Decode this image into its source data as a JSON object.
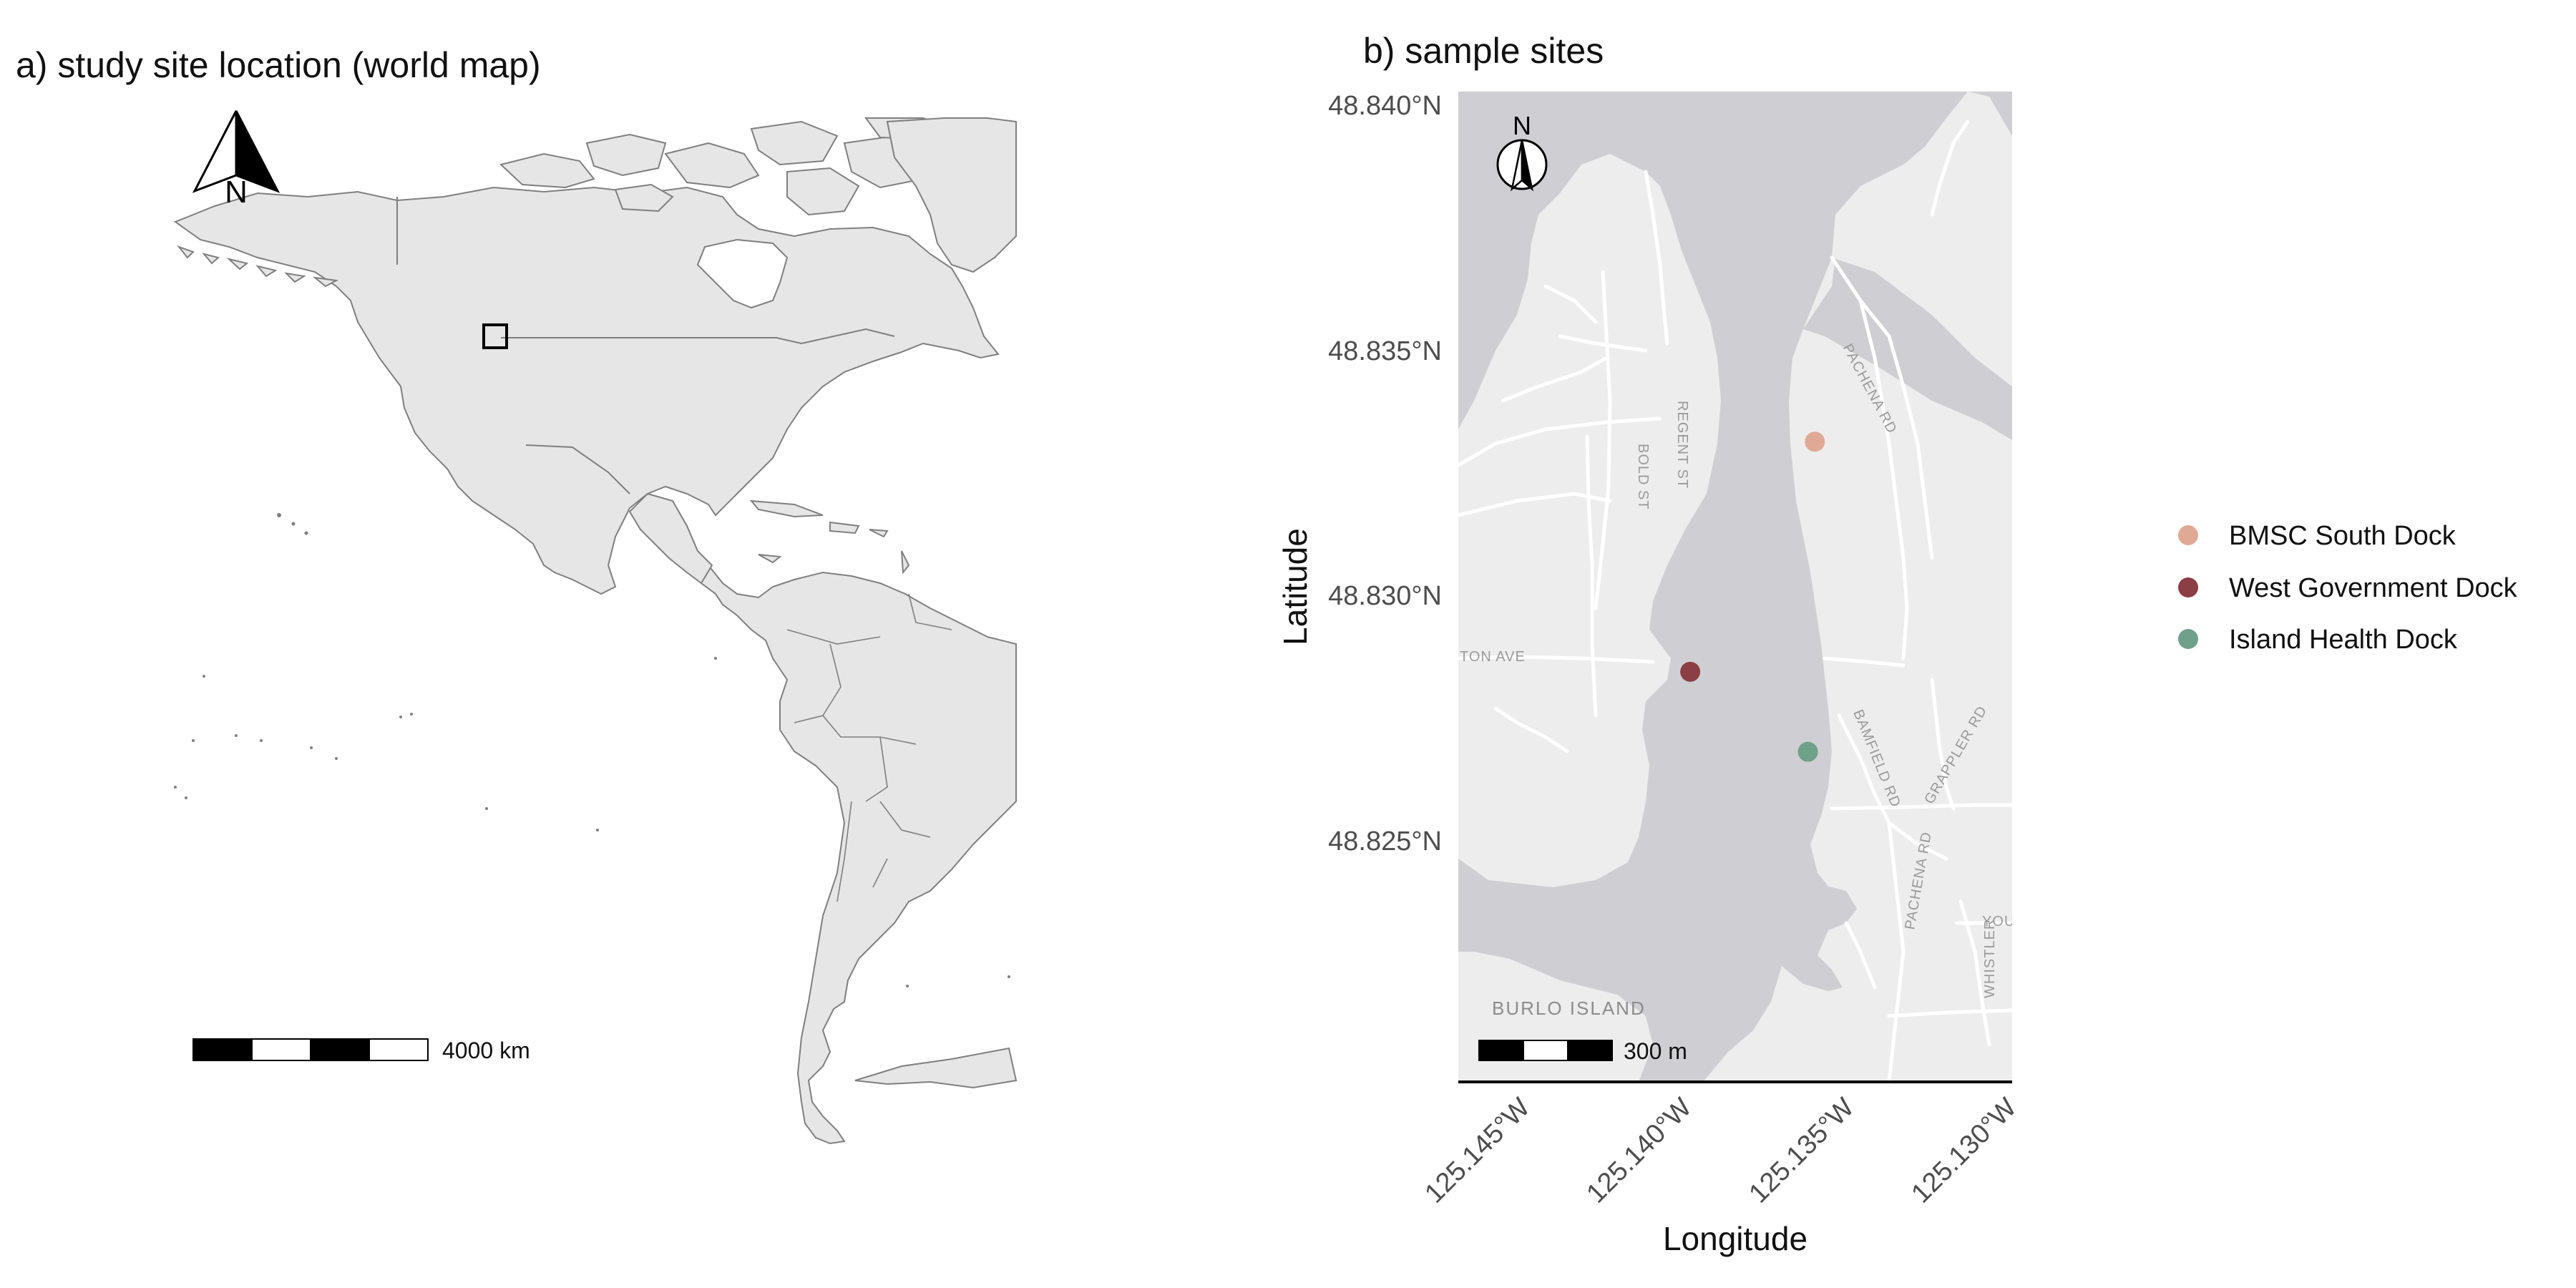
{
  "panel_a": {
    "title": "a) study site location (world map)",
    "north_label": "N",
    "scale_label": "4000 km"
  },
  "panel_b": {
    "title": "b) sample sites",
    "north_label": "N",
    "scale_label": "300 m",
    "x_axis_title": "Longitude",
    "y_axis_title": "Latitude",
    "lat_ticks": [
      "48.840°N",
      "48.835°N",
      "48.830°N",
      "48.825°N"
    ],
    "lon_ticks": [
      "125.145°W",
      "125.140°W",
      "125.135°W",
      "125.130°W"
    ],
    "road_labels": [
      "REGENT ST",
      "BOLD ST",
      "TON AVE",
      "PACHENA RD",
      "BAMFIELD RD",
      "GRAPPLER RD",
      "PACHENA RD",
      "WHISTLER",
      "YOUR"
    ],
    "island_label": "BURLO ISLAND"
  },
  "legend": {
    "items": [
      {
        "label": "BMSC South Dock",
        "color": "#e0a996"
      },
      {
        "label": "West Government Dock",
        "color": "#8b3e44"
      },
      {
        "label": "Island Health Dock",
        "color": "#6fa08a"
      }
    ]
  },
  "chart_data": {
    "type": "scatter",
    "series": [
      {
        "name": "BMSC South Dock",
        "lon": -125.1357,
        "lat": 48.8333,
        "color": "#e0a996"
      },
      {
        "name": "West Government Dock",
        "lon": -125.1393,
        "lat": 48.8287,
        "color": "#8b3e44"
      },
      {
        "name": "Island Health Dock",
        "lon": -125.1359,
        "lat": 48.8271,
        "color": "#6fa08a"
      }
    ],
    "xlim": [
      -125.146,
      -125.13
    ],
    "ylim": [
      48.8205,
      48.8403
    ],
    "xlabel": "Longitude",
    "ylabel": "Latitude"
  }
}
